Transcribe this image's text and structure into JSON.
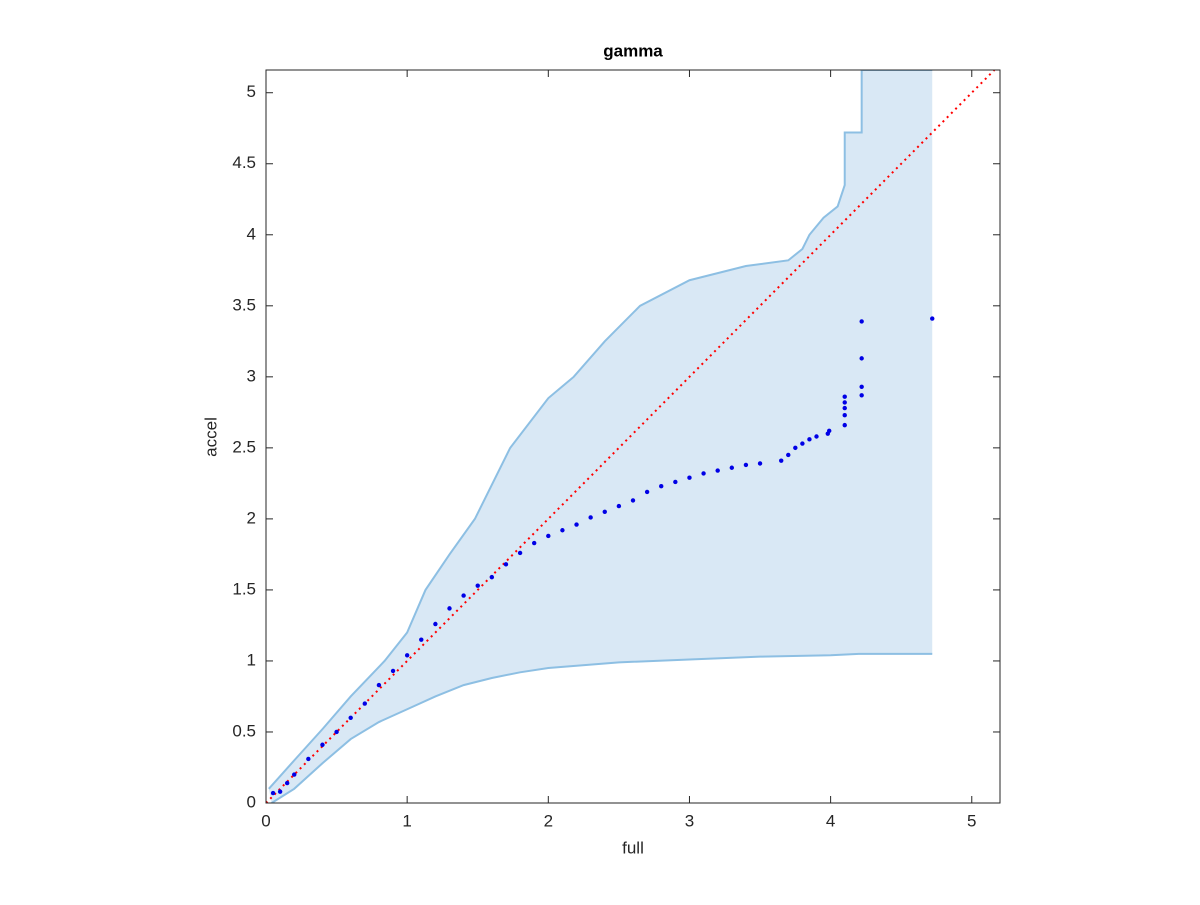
{
  "chart_data": {
    "type": "scatter",
    "title": "gamma",
    "x_label": "full",
    "y_label": "accel",
    "xlim": [
      0,
      5.2
    ],
    "ylim": [
      0,
      5.16
    ],
    "xticks": [
      0,
      1,
      2,
      3,
      4,
      5
    ],
    "yticks": [
      0,
      0.5,
      1,
      1.5,
      2,
      2.5,
      3,
      3.5,
      4,
      4.5,
      5
    ],
    "box": true,
    "band": {
      "color": "#d9e8f5",
      "edge_color": "#8dbfe3",
      "upper": {
        "x": [
          0.02,
          0.2,
          0.4,
          0.6,
          0.84,
          1.0,
          1.13,
          1.3,
          1.48,
          1.73,
          2.0,
          2.18,
          2.4,
          2.65,
          3.0,
          3.4,
          3.7,
          3.8,
          3.85,
          3.95,
          4.05,
          4.1,
          4.1,
          4.22,
          4.22,
          4.72
        ],
        "y": [
          0.1,
          0.3,
          0.52,
          0.75,
          1.0,
          1.2,
          1.5,
          1.75,
          2.0,
          2.5,
          2.85,
          3.0,
          3.25,
          3.5,
          3.68,
          3.78,
          3.82,
          3.9,
          4.0,
          4.12,
          4.2,
          4.35,
          4.72,
          4.72,
          5.16,
          5.16
        ]
      },
      "lower": {
        "x": [
          0.04,
          0.2,
          0.4,
          0.6,
          0.8,
          1.0,
          1.2,
          1.4,
          1.6,
          1.8,
          2.0,
          2.5,
          3.0,
          3.5,
          4.0,
          4.2,
          4.72
        ],
        "y": [
          0.0,
          0.1,
          0.28,
          0.45,
          0.57,
          0.66,
          0.75,
          0.83,
          0.88,
          0.92,
          0.95,
          0.99,
          1.01,
          1.03,
          1.04,
          1.05,
          1.05
        ]
      }
    },
    "points": {
      "color": "#0000e6",
      "x": [
        0.05,
        0.1,
        0.15,
        0.2,
        0.3,
        0.4,
        0.5,
        0.6,
        0.7,
        0.8,
        0.9,
        1.0,
        1.1,
        1.2,
        1.3,
        1.4,
        1.5,
        1.6,
        1.7,
        1.8,
        1.9,
        2.0,
        2.1,
        2.2,
        2.3,
        2.4,
        2.5,
        2.6,
        2.7,
        2.8,
        2.9,
        3.0,
        3.1,
        3.2,
        3.3,
        3.4,
        3.5,
        3.65,
        3.7,
        3.75,
        3.8,
        3.85,
        3.9,
        3.98,
        3.99,
        4.1,
        4.1,
        4.1,
        4.1,
        4.1,
        4.22,
        4.22,
        4.22,
        4.22,
        4.72
      ],
      "y": [
        0.07,
        0.08,
        0.14,
        0.2,
        0.31,
        0.41,
        0.5,
        0.6,
        0.7,
        0.83,
        0.93,
        1.04,
        1.15,
        1.26,
        1.37,
        1.46,
        1.53,
        1.59,
        1.68,
        1.76,
        1.83,
        1.88,
        1.92,
        1.96,
        2.01,
        2.05,
        2.09,
        2.13,
        2.19,
        2.23,
        2.26,
        2.29,
        2.32,
        2.34,
        2.36,
        2.38,
        2.39,
        2.41,
        2.45,
        2.5,
        2.53,
        2.56,
        2.58,
        2.6,
        2.62,
        2.66,
        2.73,
        2.78,
        2.82,
        2.86,
        2.87,
        2.93,
        3.13,
        3.39,
        3.41
      ]
    },
    "reference_line": {
      "color": "#ff0000",
      "x": [
        0,
        5.16
      ],
      "y": [
        0,
        5.16
      ]
    }
  }
}
